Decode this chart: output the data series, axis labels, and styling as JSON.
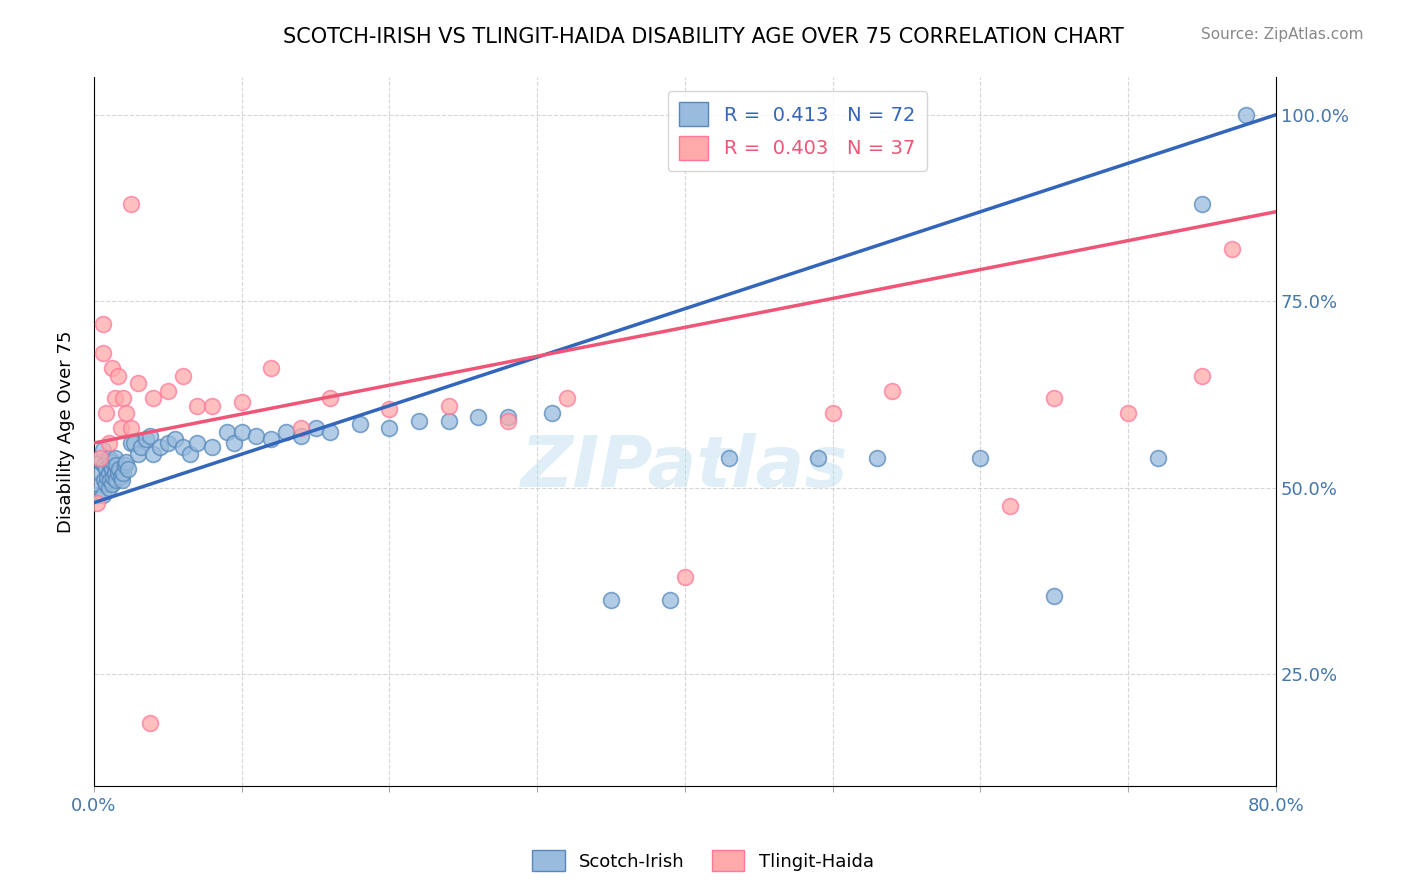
{
  "title": "SCOTCH-IRISH VS TLINGIT-HAIDA DISABILITY AGE OVER 75 CORRELATION CHART",
  "source_text": "Source: ZipAtlas.com",
  "ylabel": "Disability Age Over 75",
  "xmin": 0.0,
  "xmax": 0.8,
  "ymin": 0.1,
  "ymax": 1.05,
  "xtick_pos": [
    0.0,
    0.1,
    0.2,
    0.3,
    0.4,
    0.5,
    0.6,
    0.7,
    0.8
  ],
  "xtick_labels": [
    "0.0%",
    "",
    "",
    "",
    "",
    "",
    "",
    "",
    "80.0%"
  ],
  "ytick_labels": [
    "25.0%",
    "50.0%",
    "75.0%",
    "100.0%"
  ],
  "ytick_values": [
    0.25,
    0.5,
    0.75,
    1.0
  ],
  "blue_R": 0.413,
  "blue_N": 72,
  "pink_R": 0.403,
  "pink_N": 37,
  "blue_color": "#99BBDD",
  "pink_color": "#FFAAAA",
  "blue_edge_color": "#5588BB",
  "pink_edge_color": "#FF7799",
  "blue_line_color": "#3366BB",
  "pink_line_color": "#EE5577",
  "watermark_color": "#BBDDEE",
  "grid_color": "#CCCCCC",
  "blue_line": [
    0.0,
    0.48,
    0.8,
    1.0
  ],
  "pink_line": [
    0.0,
    0.56,
    0.8,
    0.87
  ],
  "blue_x": [
    0.002,
    0.003,
    0.004,
    0.005,
    0.006,
    0.006,
    0.007,
    0.007,
    0.008,
    0.008,
    0.009,
    0.01,
    0.01,
    0.01,
    0.011,
    0.011,
    0.012,
    0.012,
    0.013,
    0.013,
    0.014,
    0.014,
    0.015,
    0.015,
    0.016,
    0.017,
    0.018,
    0.019,
    0.02,
    0.021,
    0.022,
    0.023,
    0.025,
    0.027,
    0.03,
    0.032,
    0.035,
    0.038,
    0.04,
    0.045,
    0.05,
    0.055,
    0.06,
    0.065,
    0.07,
    0.08,
    0.09,
    0.095,
    0.1,
    0.11,
    0.12,
    0.13,
    0.14,
    0.15,
    0.16,
    0.18,
    0.2,
    0.22,
    0.24,
    0.26,
    0.28,
    0.31,
    0.35,
    0.39,
    0.43,
    0.49,
    0.53,
    0.6,
    0.65,
    0.72,
    0.75,
    0.78
  ],
  "blue_y": [
    0.49,
    0.505,
    0.52,
    0.535,
    0.55,
    0.49,
    0.51,
    0.53,
    0.505,
    0.525,
    0.515,
    0.5,
    0.52,
    0.54,
    0.51,
    0.53,
    0.505,
    0.525,
    0.515,
    0.535,
    0.52,
    0.54,
    0.51,
    0.53,
    0.52,
    0.525,
    0.515,
    0.51,
    0.52,
    0.53,
    0.535,
    0.525,
    0.56,
    0.56,
    0.545,
    0.555,
    0.565,
    0.57,
    0.545,
    0.555,
    0.56,
    0.565,
    0.555,
    0.545,
    0.56,
    0.555,
    0.575,
    0.56,
    0.575,
    0.57,
    0.565,
    0.575,
    0.57,
    0.58,
    0.575,
    0.585,
    0.58,
    0.59,
    0.59,
    0.595,
    0.595,
    0.6,
    0.35,
    0.35,
    0.54,
    0.54,
    0.54,
    0.54,
    0.355,
    0.54,
    0.88,
    1.0
  ],
  "pink_x": [
    0.002,
    0.004,
    0.006,
    0.006,
    0.008,
    0.01,
    0.012,
    0.014,
    0.016,
    0.018,
    0.02,
    0.022,
    0.025,
    0.03,
    0.04,
    0.05,
    0.06,
    0.07,
    0.08,
    0.1,
    0.12,
    0.14,
    0.16,
    0.2,
    0.24,
    0.28,
    0.32,
    0.4,
    0.5,
    0.54,
    0.62,
    0.65,
    0.7,
    0.75,
    0.77,
    0.025,
    0.038
  ],
  "pink_y": [
    0.48,
    0.54,
    0.68,
    0.72,
    0.6,
    0.56,
    0.66,
    0.62,
    0.65,
    0.58,
    0.62,
    0.6,
    0.58,
    0.64,
    0.62,
    0.63,
    0.65,
    0.61,
    0.61,
    0.615,
    0.66,
    0.58,
    0.62,
    0.605,
    0.61,
    0.59,
    0.62,
    0.38,
    0.6,
    0.63,
    0.475,
    0.62,
    0.6,
    0.65,
    0.82,
    0.88,
    0.185
  ]
}
